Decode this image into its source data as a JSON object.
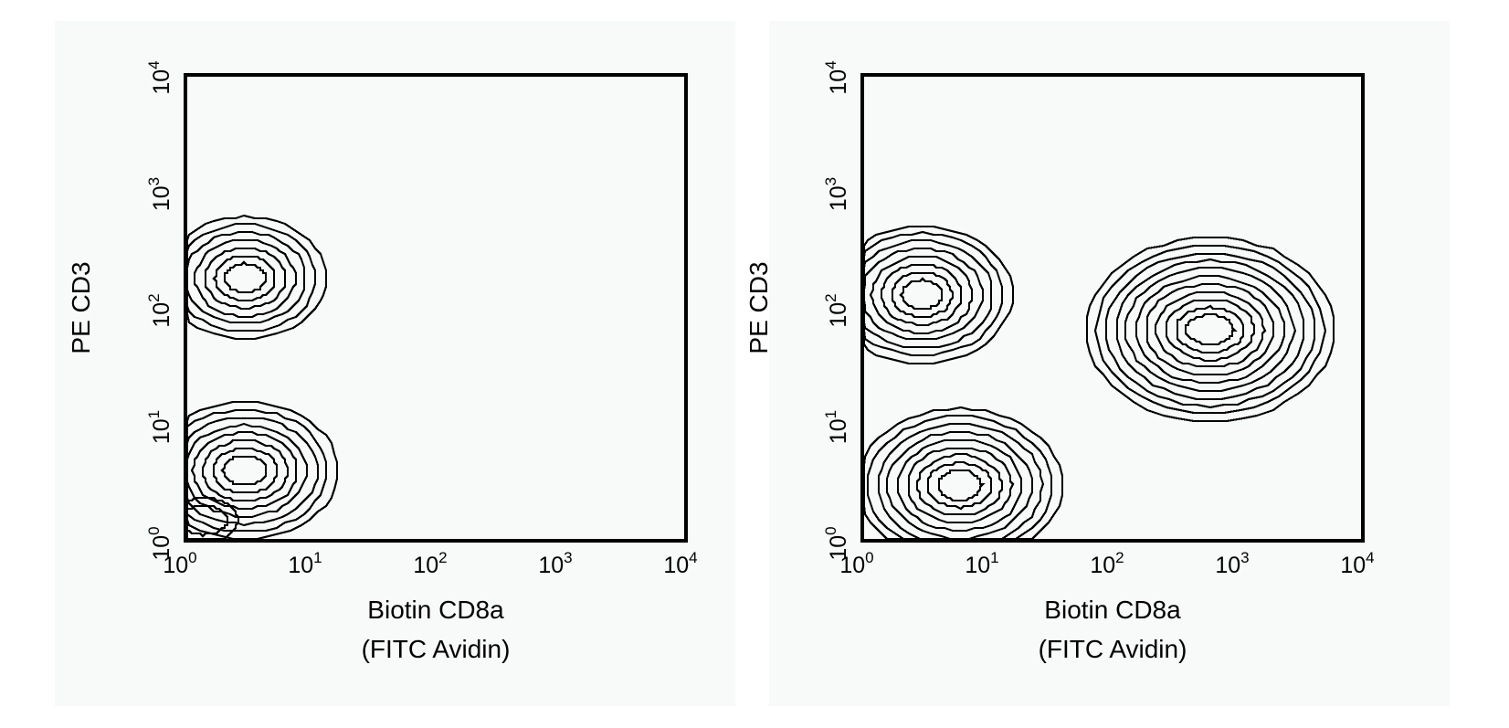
{
  "chart_data": [
    {
      "type": "contour",
      "xlabel_line1": "Biotin CD8a",
      "xlabel_line2": "(FITC Avidin)",
      "ylabel": "PE CD3",
      "xscale": "log",
      "yscale": "log",
      "xlim": [
        1,
        10000
      ],
      "ylim": [
        1,
        10000
      ],
      "x_ticks": [
        "10",
        "10",
        "10",
        "10",
        "10"
      ],
      "x_tick_exponents": [
        "0",
        "1",
        "2",
        "3",
        "4"
      ],
      "y_ticks": [
        "10",
        "10",
        "10",
        "10",
        "10"
      ],
      "y_tick_exponents": [
        "0",
        "1",
        "2",
        "3",
        "4"
      ],
      "populations": [
        {
          "x": 3,
          "y": 180,
          "levels": 7
        },
        {
          "x": 3,
          "y": 4,
          "levels": 8
        },
        {
          "x": 1.4,
          "y": 1.5,
          "levels": 2
        }
      ]
    },
    {
      "type": "contour",
      "xlabel_line1": "Biotin CD8a",
      "xlabel_line2": "(FITC Avidin)",
      "ylabel": "PE CD3",
      "xscale": "log",
      "yscale": "log",
      "xlim": [
        1,
        10000
      ],
      "ylim": [
        1,
        10000
      ],
      "x_ticks": [
        "10",
        "10",
        "10",
        "10",
        "10"
      ],
      "x_tick_exponents": [
        "0",
        "1",
        "2",
        "3",
        "4"
      ],
      "y_ticks": [
        "10",
        "10",
        "10",
        "10",
        "10"
      ],
      "y_tick_exponents": [
        "0",
        "1",
        "2",
        "3",
        "4"
      ],
      "populations": [
        {
          "x": 3,
          "y": 130,
          "levels": 8
        },
        {
          "x": 6,
          "y": 3,
          "levels": 9
        },
        {
          "x": 600,
          "y": 65,
          "levels": 11
        }
      ]
    }
  ]
}
